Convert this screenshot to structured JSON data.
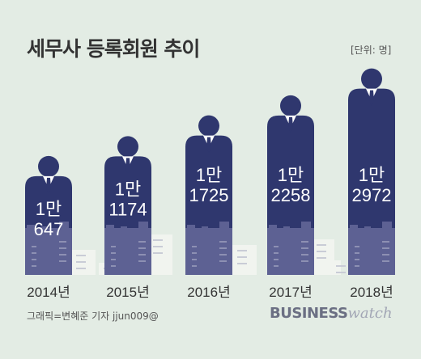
{
  "title": "세무사 등록회원 추이",
  "unit_label": "[단위: 명]",
  "credit": "그래픽=변혜준 기자 jjun009@",
  "brand": {
    "part1": "BUSINESS",
    "part2": "watch"
  },
  "colors": {
    "background": "#e3ece4",
    "body": "#2f376e",
    "city": "#5d6193",
    "pale_buildings": "#f1f4ef",
    "shirt": "#ffffff",
    "tie": "#2f376e"
  },
  "chart_data": {
    "type": "bar",
    "title": "세무사 등록회원 추이",
    "xlabel": "",
    "ylabel": "",
    "unit": "명",
    "categories": [
      "2014년",
      "2015년",
      "2016년",
      "2017년",
      "2018년"
    ],
    "series": [
      {
        "values": [
          10647,
          11174,
          11725,
          12258,
          12972
        ],
        "labels": [
          [
            "1만",
            "647"
          ],
          [
            "1만",
            "1174"
          ],
          [
            "1만",
            "1725"
          ],
          [
            "1만",
            "2258"
          ],
          [
            "1만",
            "2972"
          ]
        ]
      }
    ],
    "ylim": [
      10000,
      13500
    ],
    "grid": false,
    "legend": "none"
  }
}
